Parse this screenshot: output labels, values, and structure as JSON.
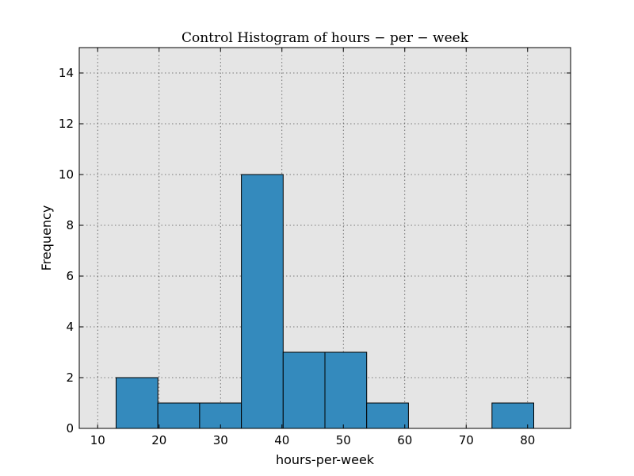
{
  "chart_data": {
    "type": "bar",
    "title": "Control Histogram of hours − per − week",
    "xlabel": "hours-per-week",
    "ylabel": "Frequency",
    "xlim": [
      7,
      87
    ],
    "ylim": [
      0,
      15
    ],
    "xticks": [
      10,
      20,
      30,
      40,
      50,
      60,
      70,
      80
    ],
    "yticks": [
      0,
      2,
      4,
      6,
      8,
      10,
      12,
      14
    ],
    "grid": true,
    "bin_edges": [
      13,
      19.8,
      26.6,
      33.4,
      40.2,
      47.0,
      53.8,
      60.6,
      67.4,
      74.2,
      81.0
    ],
    "values": [
      2,
      1,
      1,
      10,
      3,
      3,
      1,
      0,
      0,
      1
    ],
    "colors": {
      "bar": "#348abd",
      "plot_bg": "#e5e5e5"
    }
  }
}
